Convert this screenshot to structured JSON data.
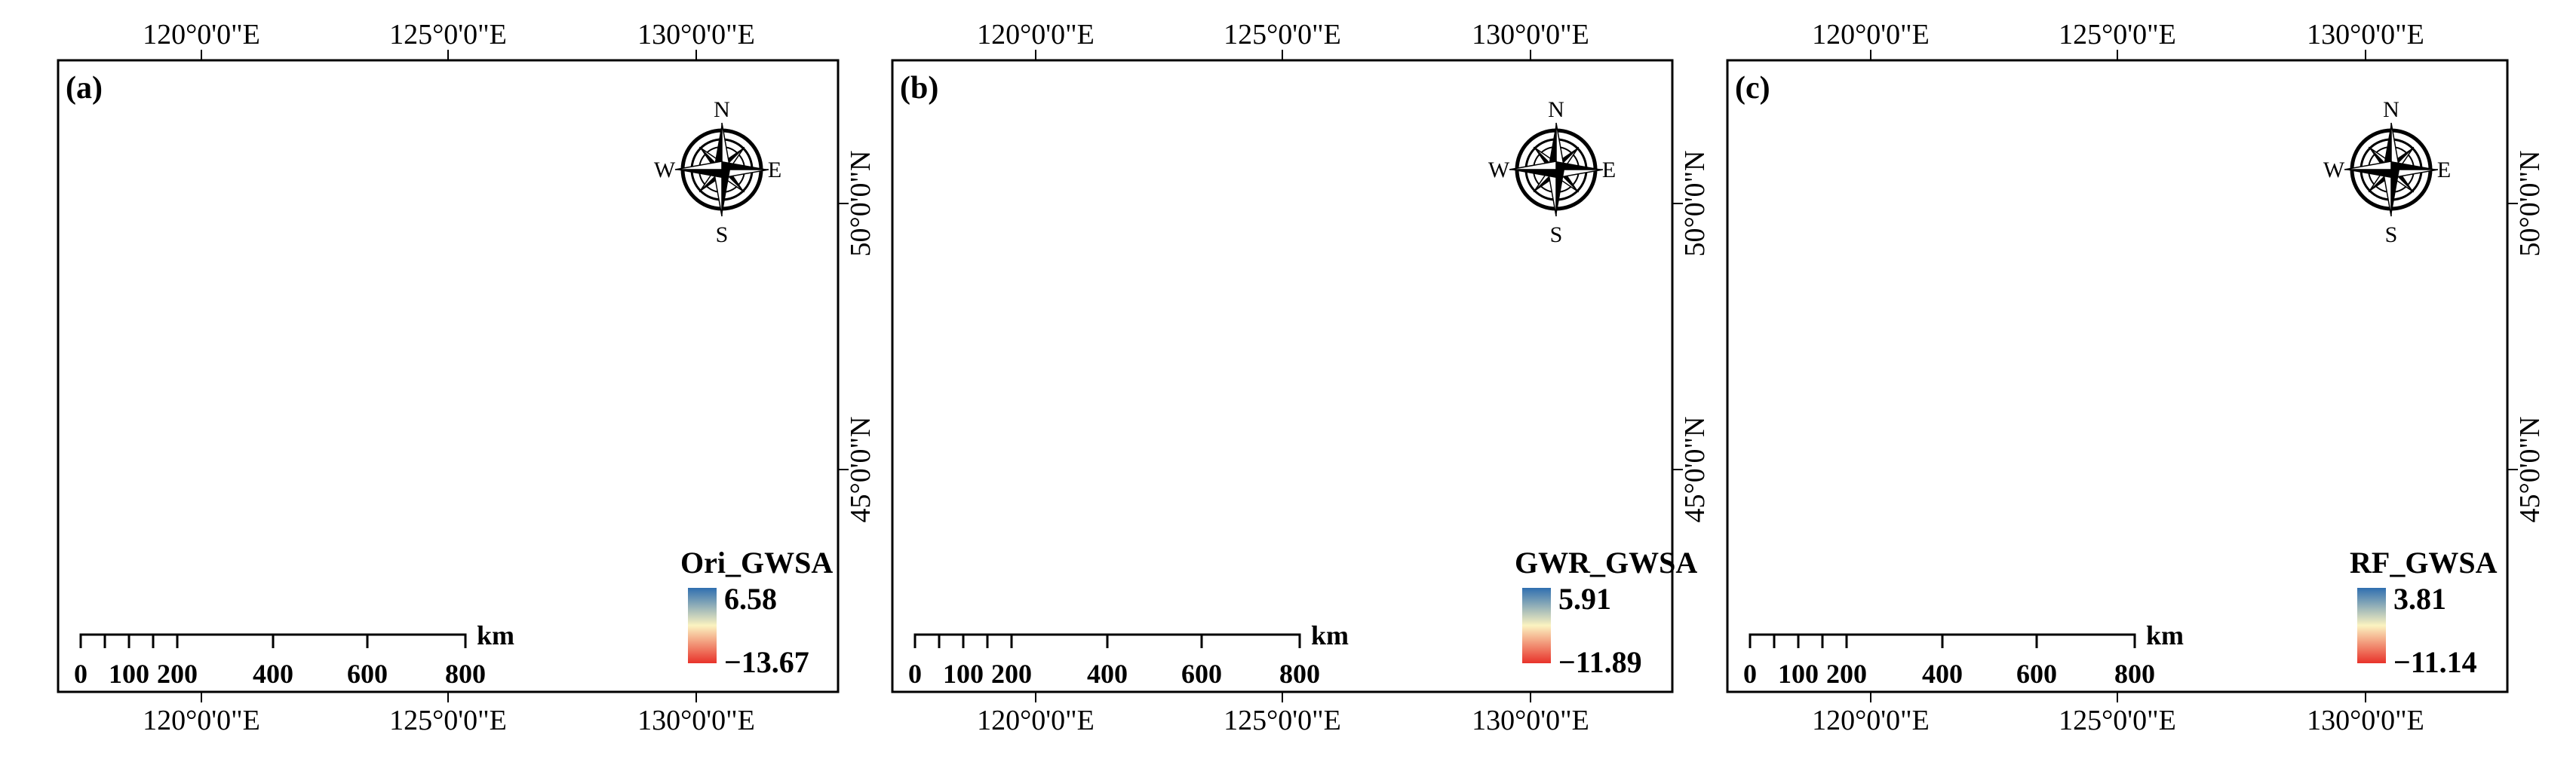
{
  "axes": {
    "top_ticks": [
      "120°0'0\"E",
      "125°0'0\"E",
      "130°0'0\"E"
    ],
    "bottom_ticks": [
      "120°0'0\"E",
      "125°0'0\"E",
      "130°0'0\"E"
    ],
    "right_ticks": [
      "50°0'0\"N",
      "45°0'0\"N"
    ]
  },
  "compass": {
    "n": "N",
    "s": "S",
    "e": "E",
    "w": "W"
  },
  "scalebar": {
    "ticks": [
      "0",
      "100",
      "200",
      "400",
      "600",
      "800"
    ],
    "unit": "km"
  },
  "panels": [
    {
      "id": "a",
      "label": "(a)",
      "legend_title": "Ori_GWSA",
      "max": "6.58",
      "min": "−13.67",
      "style": "pixelated"
    },
    {
      "id": "b",
      "label": "(b)",
      "legend_title": "GWR_GWSA",
      "max": "5.91",
      "min": "−11.89",
      "style": "smooth"
    },
    {
      "id": "c",
      "label": "(c)",
      "legend_title": "RF_GWSA",
      "max": "3.81",
      "min": "−11.14",
      "style": "noisy"
    }
  ],
  "colors": {
    "high": "#2f6fb0",
    "mid": "#fbf3c0",
    "low": "#e8322a",
    "frame": "#000000"
  }
}
